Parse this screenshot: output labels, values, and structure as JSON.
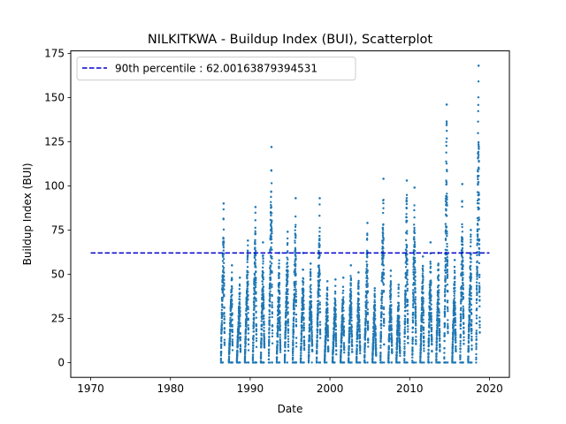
{
  "chart_data": {
    "type": "scatter",
    "title": "NILKITKWA - Buildup Index (BUI), Scatterplot",
    "xlabel": "Date",
    "ylabel": "Buildup Index (BUI)",
    "xlim": [
      1967.5,
      2022.5
    ],
    "ylim": [
      -8.4,
      176.4
    ],
    "xticks": [
      1970,
      1980,
      1990,
      2000,
      2010,
      2020
    ],
    "yticks": [
      0,
      25,
      50,
      75,
      100,
      125,
      150,
      175
    ],
    "grid": false,
    "legend_position": "top-left",
    "series": [
      {
        "kind": "points",
        "color": "#1f77b4",
        "seasons": [
          {
            "year": 1986,
            "max": 90
          },
          {
            "year": 1987,
            "max": 55
          },
          {
            "year": 1988,
            "max": 48
          },
          {
            "year": 1989,
            "max": 69
          },
          {
            "year": 1990,
            "max": 88
          },
          {
            "year": 1991,
            "max": 68
          },
          {
            "year": 1992,
            "max": 122
          },
          {
            "year": 1993,
            "max": 62
          },
          {
            "year": 1994,
            "max": 74
          },
          {
            "year": 1995,
            "max": 93
          },
          {
            "year": 1996,
            "max": 62
          },
          {
            "year": 1997,
            "max": 56
          },
          {
            "year": 1998,
            "max": 93
          },
          {
            "year": 1999,
            "max": 46
          },
          {
            "year": 2000,
            "max": 47
          },
          {
            "year": 2001,
            "max": 48
          },
          {
            "year": 2002,
            "max": 55
          },
          {
            "year": 2003,
            "max": 51
          },
          {
            "year": 2004,
            "max": 79
          },
          {
            "year": 2005,
            "max": 42
          },
          {
            "year": 2006,
            "max": 104
          },
          {
            "year": 2007,
            "max": 52
          },
          {
            "year": 2008,
            "max": 44
          },
          {
            "year": 2009,
            "max": 103
          },
          {
            "year": 2010,
            "max": 99
          },
          {
            "year": 2011,
            "max": 60
          },
          {
            "year": 2012,
            "max": 68
          },
          {
            "year": 2013,
            "max": 62
          },
          {
            "year": 2014,
            "max": 146
          },
          {
            "year": 2015,
            "max": 58
          },
          {
            "year": 2016,
            "max": 101
          },
          {
            "year": 2017,
            "max": 75
          },
          {
            "year": 2018,
            "max": 168
          }
        ]
      },
      {
        "name": "90th percentile : 62.00163879394531",
        "kind": "hline",
        "y": 62.00163879394531,
        "x_range": [
          1970,
          2020
        ],
        "color": "#0000cd",
        "style": "dashed"
      }
    ]
  }
}
